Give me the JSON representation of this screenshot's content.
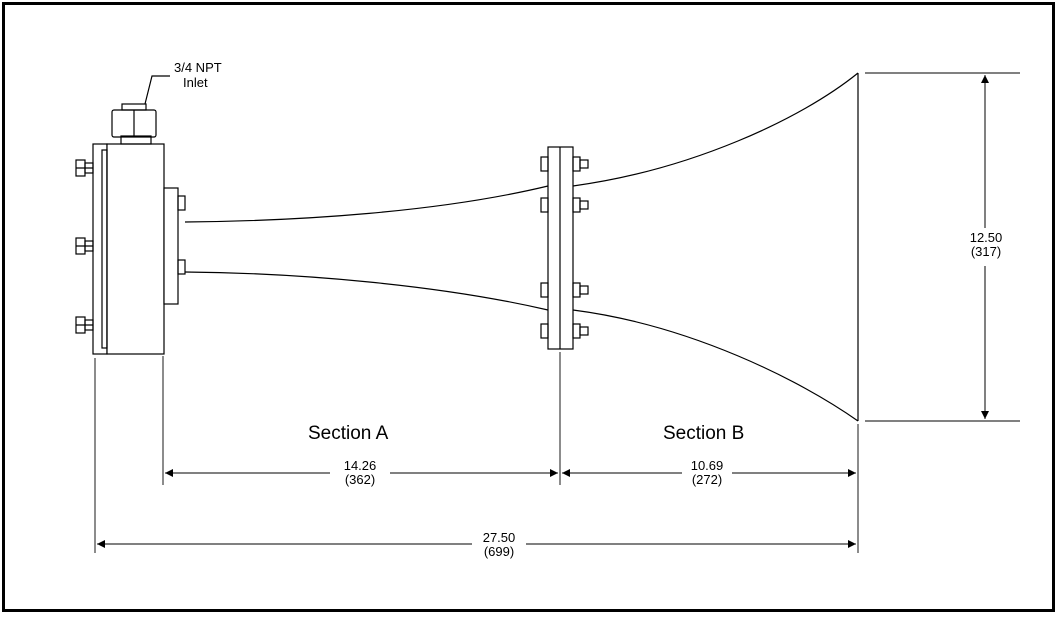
{
  "drawing": {
    "inlet_label": {
      "line1": "3/4 NPT",
      "line2": "Inlet"
    },
    "section_a": "Section A",
    "section_b": "Section B",
    "dim_section_a": {
      "imperial": "14.26",
      "metric": "(362)"
    },
    "dim_section_b": {
      "imperial": "10.69",
      "metric": "(272)"
    },
    "dim_overall": {
      "imperial": "27.50",
      "metric": "(699)"
    },
    "dim_mouth": {
      "imperial": "12.50",
      "metric": "(317)"
    }
  }
}
